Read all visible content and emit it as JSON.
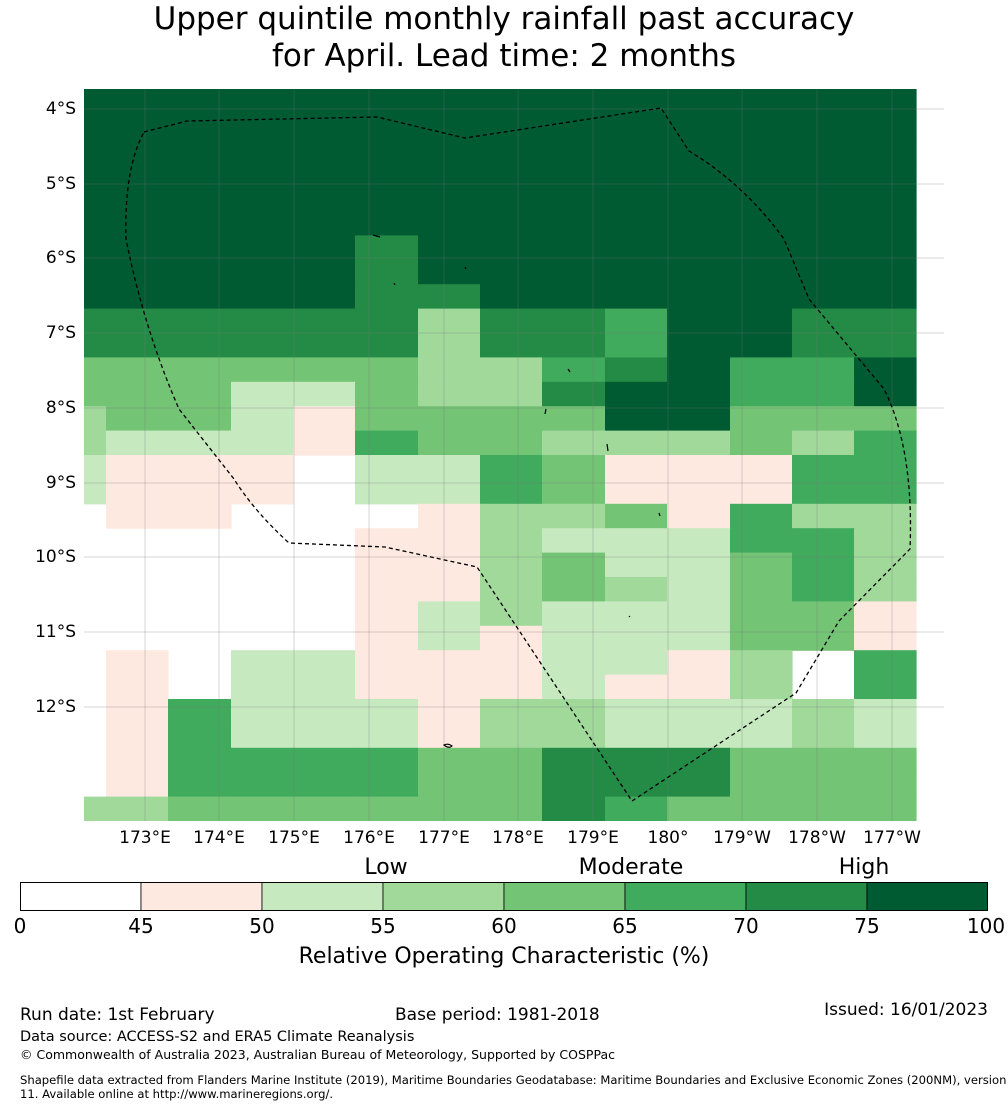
{
  "title_line1": "Upper quintile monthly rainfall past accuracy",
  "title_line2": "for April. Lead time: 2 months",
  "lat_labels": [
    "4°S",
    "5°S",
    "6°S",
    "7°S",
    "8°S",
    "9°S",
    "10°S",
    "11°S",
    "12°S"
  ],
  "lon_labels": [
    "173°E",
    "174°E",
    "175°E",
    "176°E",
    "177°E",
    "178°E",
    "179°E",
    "180°",
    "179°W",
    "178°W",
    "177°W"
  ],
  "legend": {
    "categories": [
      "Low",
      "Moderate",
      "High"
    ],
    "ticks": [
      "0",
      "45",
      "50",
      "55",
      "60",
      "65",
      "70",
      "75",
      "100"
    ],
    "colors": [
      "#ffffff",
      "#fee9e0",
      "#c7e9c0",
      "#a1d99b",
      "#74c476",
      "#41ab5d",
      "#238b45",
      "#005a32"
    ],
    "label": "Relative Operating Characteristic (%)"
  },
  "grid_bins": [
    "77777777777777",
    "77777777777777",
    "77777777777777",
    "77777777777777",
    "77777777777777",
    "77777777777777",
    "77777677777777",
    "77777677777777",
    "77777667777777",
    "66666636657766",
    "66666636657766",
    "44444433567557",
    "44422433677557",
    "34421444477444",
    "32221544333435",
    "21110225411155",
    "21110225411155",
    "01100013341533",
    "00000113222553",
    "00000113422453",
    "00000113432453",
    "00000123222441",
    "00000121222441",
    "01022111221305",
    "01022111211305",
    "01522213322232",
    "01522213322232",
    "01555544666444",
    "01555544666444",
    "33444444654444"
  ],
  "footer": {
    "run_date": "Run date: 1st February",
    "base_period": "Base period: 1981-2018",
    "issued": "Issued: 16/01/2023",
    "data_source": "Data source: ACCESS-S2 and ERA5 Climate Reanalysis",
    "copyright": "© Commonwealth of Australia 2023, Australian Bureau of Meteorology, Supported by COSPPac",
    "shapefile": "Shapefile data extracted from Flanders Marine Institute (2019), Maritime Boundaries Geodatabase: Maritime Boundaries and Exclusive Economic Zones (200NM), version 11. Available online at http://www.marineregions.org/."
  }
}
